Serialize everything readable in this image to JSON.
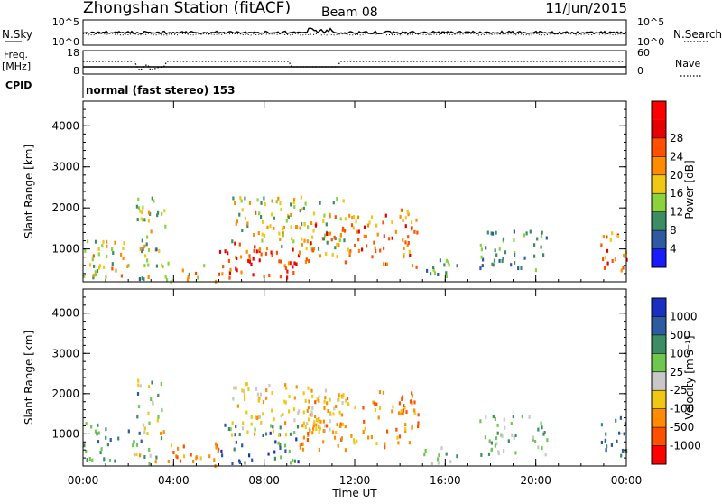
{
  "header": {
    "station_title": "Zhongshan Station (fitACF)",
    "beam": "Beam 08",
    "date": "11/Jun/2015"
  },
  "top_panels": {
    "nsky_label": "N.Sky",
    "nsky_ticks": [
      "10^5",
      "10^0"
    ],
    "nsearch_label": "N.Search",
    "nsearch_ticks": [
      "10^5",
      "10^0"
    ],
    "freq_label": "Freq.",
    "freq_unit": "[MHz]",
    "freq_ticks": [
      "18",
      "8"
    ],
    "nave_label": "Nave",
    "nave_ticks": [
      "60",
      "0"
    ],
    "cpid_label": "CPID",
    "cpid_text": "normal (fast stereo) 153"
  },
  "colors": {
    "power": [
      "#1a1aff",
      "#2d5aa0",
      "#3c8c64",
      "#8cd23c",
      "#f0c814",
      "#ff8c00",
      "#ff5000",
      "#e60000",
      "#ff0000"
    ],
    "velocity": [
      "#1a2fbf",
      "#2d5aa0",
      "#3c8c64",
      "#6ec850",
      "#c8c8c8",
      "#f0c814",
      "#ff8c00",
      "#ff5000",
      "#ff0000"
    ]
  },
  "chart_data": [
    {
      "type": "heatmap",
      "quantity": "power",
      "ylabel": "Slant Range [km]",
      "yticks": [
        1000,
        2000,
        3000,
        4000
      ],
      "ylim": [
        200,
        4600
      ],
      "xlim": [
        0,
        24
      ],
      "colorbar_label": "Power [dB]",
      "colorbar_ticks": [
        "4",
        "8",
        "12",
        "16",
        "20",
        "24",
        "28"
      ],
      "clim": [
        0,
        32
      ],
      "scatter_regions": [
        {
          "t": [
            0.0,
            2.0
          ],
          "r": [
            300,
            1300
          ],
          "power": [
            8,
            22
          ]
        },
        {
          "t": [
            2.3,
            3.6
          ],
          "r": [
            300,
            2300
          ],
          "power": [
            6,
            20
          ]
        },
        {
          "t": [
            3.6,
            6.0
          ],
          "r": [
            200,
            700
          ],
          "power": [
            10,
            24
          ]
        },
        {
          "t": [
            6.0,
            9.5
          ],
          "r": [
            300,
            1200
          ],
          "power": [
            18,
            30
          ]
        },
        {
          "t": [
            6.5,
            11.5
          ],
          "r": [
            1000,
            2300
          ],
          "power": [
            8,
            22
          ]
        },
        {
          "t": [
            9.5,
            14.7
          ],
          "r": [
            600,
            1900
          ],
          "power": [
            14,
            28
          ]
        },
        {
          "t": [
            14.0,
            14.8
          ],
          "r": [
            1200,
            2000
          ],
          "power": [
            14,
            26
          ]
        },
        {
          "t": [
            15.0,
            16.5
          ],
          "r": [
            300,
            800
          ],
          "power": [
            6,
            14
          ]
        },
        {
          "t": [
            17.5,
            20.5
          ],
          "r": [
            500,
            1500
          ],
          "power": [
            6,
            12
          ]
        },
        {
          "t": [
            22.8,
            24.0
          ],
          "r": [
            400,
            1500
          ],
          "power": [
            14,
            28
          ]
        }
      ]
    },
    {
      "type": "heatmap",
      "quantity": "velocity",
      "xlabel": "Time UT",
      "xticks": [
        "00:00",
        "04:00",
        "08:00",
        "12:00",
        "16:00",
        "20:00",
        "00:00"
      ],
      "ylabel": "Slant Range [km]",
      "yticks": [
        1000,
        2000,
        3000,
        4000
      ],
      "ylim": [
        200,
        4600
      ],
      "xlim": [
        0,
        24
      ],
      "colorbar_label": "Velocity [m s⁻¹]",
      "colorbar_ticks": [
        "1000",
        "500",
        "100",
        "25",
        "-25",
        "-100",
        "-500",
        "-1000"
      ],
      "scatter_regions": [
        {
          "t": [
            0.0,
            2.2
          ],
          "r": [
            300,
            1300
          ],
          "vel_class": [
            1,
            3
          ]
        },
        {
          "t": [
            2.2,
            3.6
          ],
          "r": [
            300,
            2400
          ],
          "vel_class": [
            1,
            6
          ]
        },
        {
          "t": [
            3.6,
            6.0
          ],
          "r": [
            200,
            800
          ],
          "vel_class": [
            5,
            7
          ]
        },
        {
          "t": [
            6.0,
            9.5
          ],
          "r": [
            300,
            1300
          ],
          "vel_class": [
            0,
            3
          ]
        },
        {
          "t": [
            6.5,
            11.5
          ],
          "r": [
            1000,
            2300
          ],
          "vel_class": [
            4,
            6
          ]
        },
        {
          "t": [
            9.5,
            14.7
          ],
          "r": [
            600,
            2100
          ],
          "vel_class": [
            5,
            7
          ]
        },
        {
          "t": [
            14.0,
            14.8
          ],
          "r": [
            1100,
            2100
          ],
          "vel_class": [
            6,
            7
          ]
        },
        {
          "t": [
            15.0,
            16.5
          ],
          "r": [
            300,
            800
          ],
          "vel_class": [
            2,
            5
          ]
        },
        {
          "t": [
            17.5,
            20.5
          ],
          "r": [
            500,
            1500
          ],
          "vel_class": [
            2,
            4
          ]
        },
        {
          "t": [
            22.8,
            24.0
          ],
          "r": [
            400,
            1500
          ],
          "vel_class": [
            0,
            2
          ]
        }
      ]
    }
  ]
}
